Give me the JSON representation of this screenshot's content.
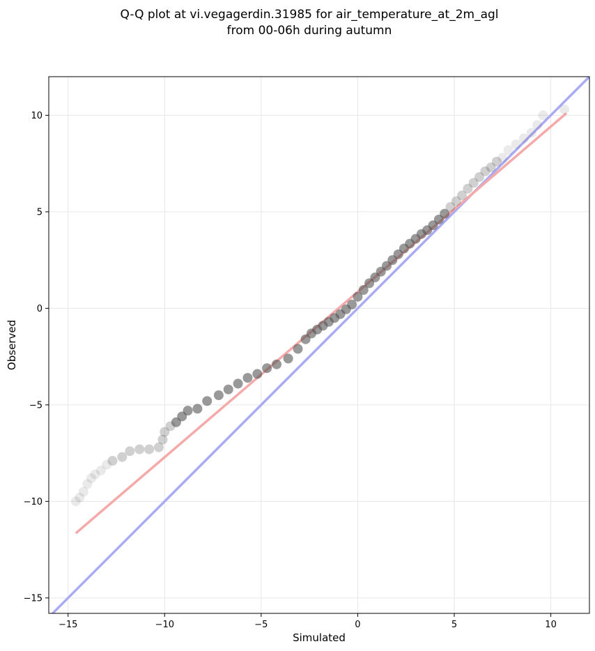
{
  "chart_data": {
    "type": "scatter",
    "title_lines": [
      "Q-Q plot at vi.vegagerdin.31985 for air_temperature_at_2m_agl",
      "from 00-06h during autumn"
    ],
    "xlabel": "Simulated",
    "ylabel": "Observed",
    "xlim": [
      -16,
      12
    ],
    "ylim": [
      -15.8,
      12.0
    ],
    "xticks": [
      -15,
      -10,
      -5,
      0,
      5,
      10
    ],
    "yticks": [
      -15,
      -10,
      -5,
      0,
      5,
      10
    ],
    "xtick_labels": [
      "−15",
      "−10",
      "−5",
      "0",
      "5",
      "10"
    ],
    "ytick_labels": [
      "−15",
      "−10",
      "−5",
      "0",
      "5",
      "10"
    ],
    "grid": true,
    "colors": {
      "points": "#555555",
      "identity_line": "#aaaaf5",
      "fit_line": "#f5a9a9"
    },
    "identity_line": {
      "x": [
        -16,
        12
      ],
      "y": [
        -16,
        12
      ]
    },
    "fit_line": {
      "x": [
        -14.6,
        10.8
      ],
      "y": [
        -11.65,
        10.1
      ]
    },
    "points": {
      "x": [
        -14.6,
        -14.4,
        -14.2,
        -14.0,
        -13.8,
        -13.6,
        -13.3,
        -13.0,
        -12.7,
        -12.2,
        -11.8,
        -11.3,
        -10.8,
        -10.3,
        -10.1,
        -10.0,
        -9.7,
        -9.4,
        -9.1,
        -8.8,
        -8.3,
        -7.8,
        -7.2,
        -6.7,
        -6.2,
        -5.7,
        -5.2,
        -4.7,
        -4.2,
        -3.6,
        -3.1,
        -2.7,
        -2.4,
        -2.1,
        -1.8,
        -1.5,
        -1.2,
        -0.9,
        -0.6,
        -0.3,
        0.0,
        0.3,
        0.6,
        0.9,
        1.2,
        1.5,
        1.8,
        2.1,
        2.4,
        2.7,
        3.0,
        3.3,
        3.6,
        3.9,
        4.2,
        4.5,
        4.8,
        5.1,
        5.4,
        5.7,
        6.0,
        6.3,
        6.6,
        6.9,
        7.2,
        7.5,
        7.8,
        8.2,
        8.6,
        9.0,
        9.3,
        9.6,
        10.7
      ],
      "y": [
        -10.0,
        -9.8,
        -9.5,
        -9.1,
        -8.8,
        -8.6,
        -8.4,
        -8.1,
        -7.9,
        -7.7,
        -7.4,
        -7.3,
        -7.3,
        -7.2,
        -6.8,
        -6.4,
        -6.1,
        -5.9,
        -5.6,
        -5.3,
        -5.2,
        -4.8,
        -4.5,
        -4.2,
        -3.9,
        -3.6,
        -3.4,
        -3.1,
        -2.9,
        -2.6,
        -2.1,
        -1.6,
        -1.3,
        -1.1,
        -0.9,
        -0.7,
        -0.5,
        -0.3,
        -0.05,
        0.2,
        0.6,
        0.95,
        1.3,
        1.6,
        1.9,
        2.2,
        2.5,
        2.8,
        3.1,
        3.35,
        3.6,
        3.85,
        4.05,
        4.3,
        4.6,
        4.9,
        5.25,
        5.55,
        5.85,
        6.2,
        6.5,
        6.8,
        7.1,
        7.3,
        7.6,
        7.8,
        8.2,
        8.5,
        8.8,
        9.1,
        9.5,
        10.0,
        10.3
      ]
    }
  }
}
